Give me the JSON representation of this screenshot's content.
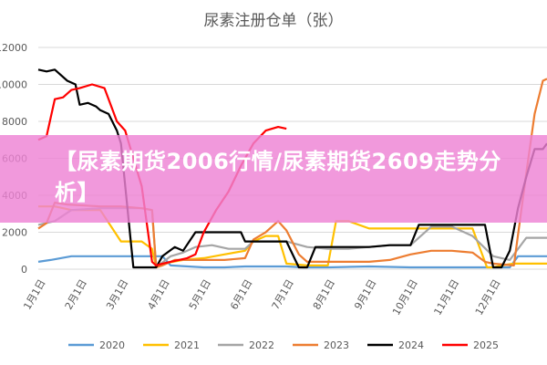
{
  "chart_data": {
    "type": "line",
    "title": "尿素注册仓单（张）",
    "xlabel": "",
    "ylabel": "",
    "ylim": [
      0,
      12000
    ],
    "yticks": [
      "0",
      "2000",
      "4000",
      "6000",
      "8000",
      "10000",
      "12000"
    ],
    "ytick_values": [
      0,
      2000,
      4000,
      6000,
      8000,
      10000,
      12000
    ],
    "xticks": [
      "1月1日",
      "2月1日",
      "3月1日",
      "4月1日",
      "5月1日",
      "6月1日",
      "7月1日",
      "8月1日",
      "9月1日",
      "10月1日",
      "11月1日",
      "12月1日"
    ],
    "legend_position": "bottom",
    "grid": "horizontal",
    "series": [
      {
        "name": "2020",
        "color": "#5b9bd5",
        "x": [
          0,
          0.3,
          0.8,
          1.5,
          2.5,
          3.0,
          3.2,
          4.0,
          4.5,
          5.0,
          6.0,
          6.4,
          7.0,
          8.0,
          9.0,
          10.0,
          11.0,
          11.4,
          11.6,
          11.9,
          12.3
        ],
        "y": [
          400,
          500,
          700,
          700,
          700,
          700,
          200,
          100,
          100,
          150,
          150,
          100,
          100,
          150,
          100,
          100,
          100,
          100,
          700,
          700,
          700
        ]
      },
      {
        "name": "2021",
        "color": "#ffc000",
        "x": [
          0,
          0.4,
          0.8,
          1.5,
          2.0,
          2.5,
          2.75,
          2.85,
          3.0,
          3.5,
          4.0,
          4.5,
          5.0,
          5.2,
          5.5,
          5.8,
          6.0,
          6.5,
          7.0,
          7.2,
          7.5,
          8.0,
          8.5,
          9.0,
          9.5,
          10.0,
          10.5,
          10.85,
          11.0,
          11.2,
          11.5,
          12.0,
          12.3
        ],
        "y": [
          3400,
          3400,
          3200,
          3200,
          1500,
          1500,
          1100,
          100,
          300,
          500,
          600,
          800,
          1000,
          1500,
          1800,
          1800,
          300,
          200,
          200,
          2600,
          2600,
          2200,
          2200,
          2200,
          2200,
          2200,
          2200,
          100,
          100,
          200,
          300,
          300,
          300
        ]
      },
      {
        "name": "2022",
        "color": "#a5a5a5",
        "x": [
          0,
          0.4,
          0.8,
          1.5,
          2.5,
          2.75,
          2.85,
          3.2,
          3.5,
          3.8,
          4.2,
          4.6,
          5.0,
          5.2,
          6.0,
          6.5,
          7.0,
          7.5,
          8.0,
          8.5,
          9.0,
          9.5,
          10.0,
          10.5,
          11.0,
          11.4,
          11.8,
          12.3
        ],
        "y": [
          2400,
          2600,
          3200,
          3300,
          3300,
          3200,
          100,
          700,
          900,
          1200,
          1300,
          1100,
          1100,
          1500,
          1500,
          1200,
          1100,
          1100,
          1200,
          1300,
          1300,
          2300,
          2300,
          1800,
          700,
          500,
          1700,
          1700
        ]
      },
      {
        "name": "2023",
        "color": "#ed7d31",
        "x": [
          0,
          0.2,
          0.4,
          0.7,
          1.5,
          2.0,
          2.5,
          2.75,
          2.85,
          3.0,
          3.3,
          3.6,
          4.0,
          4.5,
          5.0,
          5.2,
          5.5,
          5.8,
          6.0,
          6.3,
          6.5,
          7.0,
          7.5,
          8.0,
          8.5,
          9.0,
          9.5,
          10.0,
          10.5,
          10.8,
          11.0,
          11.5,
          11.8,
          12.0,
          12.2,
          12.3
        ],
        "y": [
          2200,
          2500,
          3600,
          3500,
          3400,
          3400,
          3300,
          3200,
          100,
          200,
          500,
          500,
          500,
          500,
          600,
          1600,
          2000,
          2600,
          2100,
          800,
          400,
          400,
          400,
          400,
          500,
          800,
          1000,
          1000,
          900,
          400,
          300,
          200,
          5200,
          8400,
          10200,
          10300
        ]
      },
      {
        "name": "2024",
        "color": "#000000",
        "x": [
          0,
          0.2,
          0.4,
          0.7,
          0.9,
          1.0,
          1.2,
          1.4,
          1.5,
          1.7,
          1.9,
          2.0,
          2.3,
          2.6,
          2.75,
          2.85,
          3.0,
          3.3,
          3.5,
          3.8,
          4.0,
          4.1,
          4.4,
          4.7,
          4.9,
          5.0,
          5.5,
          6.0,
          6.3,
          6.5,
          6.7,
          6.9,
          7.0,
          7.5,
          8.0,
          8.5,
          9.0,
          9.2,
          9.4,
          9.6,
          9.8,
          10.0,
          10.5,
          10.8,
          11.0,
          11.2,
          11.4,
          11.6,
          11.8,
          12.0,
          12.2,
          12.3
        ],
        "y": [
          10800,
          10700,
          10800,
          10200,
          10000,
          8900,
          9000,
          8800,
          8600,
          8400,
          7500,
          6800,
          100,
          100,
          100,
          100,
          700,
          1200,
          1000,
          2000,
          2000,
          2000,
          2000,
          2000,
          2000,
          1500,
          1500,
          1500,
          100,
          100,
          1200,
          1200,
          1200,
          1200,
          1200,
          1300,
          1300,
          2400,
          2400,
          2400,
          2400,
          2400,
          2400,
          2400,
          100,
          100,
          1000,
          3300,
          5000,
          6500,
          6500,
          6800
        ]
      },
      {
        "name": "2025",
        "color": "#ff0000",
        "x": [
          0,
          0.2,
          0.4,
          0.6,
          0.8,
          1.0,
          1.3,
          1.6,
          1.9,
          2.1,
          2.3,
          2.5,
          2.75,
          2.85,
          3.0,
          3.2,
          3.4,
          3.6,
          3.8,
          4.0,
          4.3,
          4.6,
          4.9,
          5.2,
          5.5,
          5.8,
          6.0
        ],
        "y": [
          7000,
          7200,
          9200,
          9300,
          9700,
          9800,
          10000,
          9800,
          8000,
          7500,
          6000,
          4500,
          400,
          200,
          300,
          400,
          500,
          600,
          800,
          2000,
          3200,
          4200,
          5600,
          6800,
          7500,
          7700,
          7600
        ]
      }
    ]
  },
  "banner": {
    "text": "【尿素期货2006行情/尿素期货2609走势分析】"
  }
}
